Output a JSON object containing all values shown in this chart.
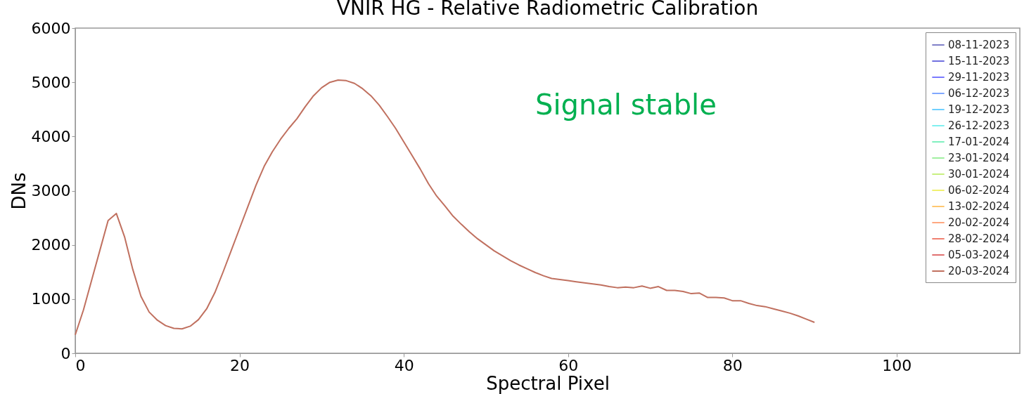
{
  "chart_data": {
    "type": "line",
    "title": "VNIR HG - Relative Radiometric Calibration",
    "xlabel": "Spectral Pixel",
    "ylabel": "DNs",
    "xlim": [
      0,
      115
    ],
    "xticks": [
      0,
      20,
      40,
      60,
      80,
      100
    ],
    "ylim": [
      0,
      6000
    ],
    "yticks": [
      0,
      1000,
      2000,
      3000,
      4000,
      5000,
      6000
    ],
    "grid": false,
    "legend": "top right",
    "annotations": [
      "Signal stable"
    ],
    "series": [
      {
        "name": "08-11-2023",
        "color": "#8080c8"
      },
      {
        "name": "15-11-2023",
        "color": "#7070e0"
      },
      {
        "name": "29-11-2023",
        "color": "#7a7aff"
      },
      {
        "name": "06-12-2023",
        "color": "#80a8ff"
      },
      {
        "name": "19-12-2023",
        "color": "#70d0ff"
      },
      {
        "name": "26-12-2023",
        "color": "#80f0f0"
      },
      {
        "name": "17-01-2024",
        "color": "#80f0c0"
      },
      {
        "name": "23-01-2024",
        "color": "#a0f0a0"
      },
      {
        "name": "30-01-2024",
        "color": "#c8f080"
      },
      {
        "name": "06-02-2024",
        "color": "#f0f070"
      },
      {
        "name": "13-02-2024",
        "color": "#ffc870"
      },
      {
        "name": "20-02-2024",
        "color": "#ffa880"
      },
      {
        "name": "28-02-2024",
        "color": "#f08070"
      },
      {
        "name": "05-03-2024",
        "color": "#e07070"
      },
      {
        "name": "20-03-2024",
        "color": "#c0705f",
        "x": [
          0,
          1,
          2,
          3,
          4,
          5,
          6,
          7,
          8,
          9,
          10,
          11,
          12,
          13,
          14,
          15,
          16,
          17,
          18,
          19,
          20,
          21,
          22,
          23,
          24,
          25,
          26,
          27,
          28,
          29,
          30,
          31,
          32,
          33,
          34,
          35,
          36,
          37,
          38,
          39,
          40,
          41,
          42,
          43,
          44,
          45,
          46,
          47,
          48,
          49,
          50,
          51,
          52,
          53,
          54,
          55,
          56,
          57,
          58,
          59,
          60,
          61,
          62,
          63,
          64,
          65,
          66,
          67,
          68,
          69,
          70,
          71,
          72,
          73,
          74,
          75,
          76,
          77,
          78,
          79,
          80,
          81,
          82,
          83,
          84,
          85,
          86,
          87,
          88,
          89,
          90
        ],
        "values": [
          340,
          800,
          1350,
          1900,
          2450,
          2580,
          2150,
          1550,
          1050,
          760,
          610,
          510,
          460,
          450,
          500,
          620,
          820,
          1120,
          1500,
          1900,
          2300,
          2700,
          3100,
          3450,
          3720,
          3950,
          4150,
          4330,
          4550,
          4750,
          4900,
          5000,
          5040,
          5030,
          4980,
          4880,
          4750,
          4580,
          4370,
          4150,
          3900,
          3650,
          3400,
          3130,
          2900,
          2720,
          2530,
          2380,
          2240,
          2110,
          2000,
          1890,
          1800,
          1710,
          1630,
          1560,
          1490,
          1430,
          1380,
          1360,
          1340,
          1320,
          1300,
          1280,
          1260,
          1230,
          1210,
          1220,
          1210,
          1240,
          1200,
          1230,
          1160,
          1160,
          1140,
          1100,
          1110,
          1030,
          1030,
          1020,
          970,
          970,
          920,
          880,
          860,
          820,
          780,
          740,
          690,
          630,
          570
        ]
      }
    ]
  }
}
